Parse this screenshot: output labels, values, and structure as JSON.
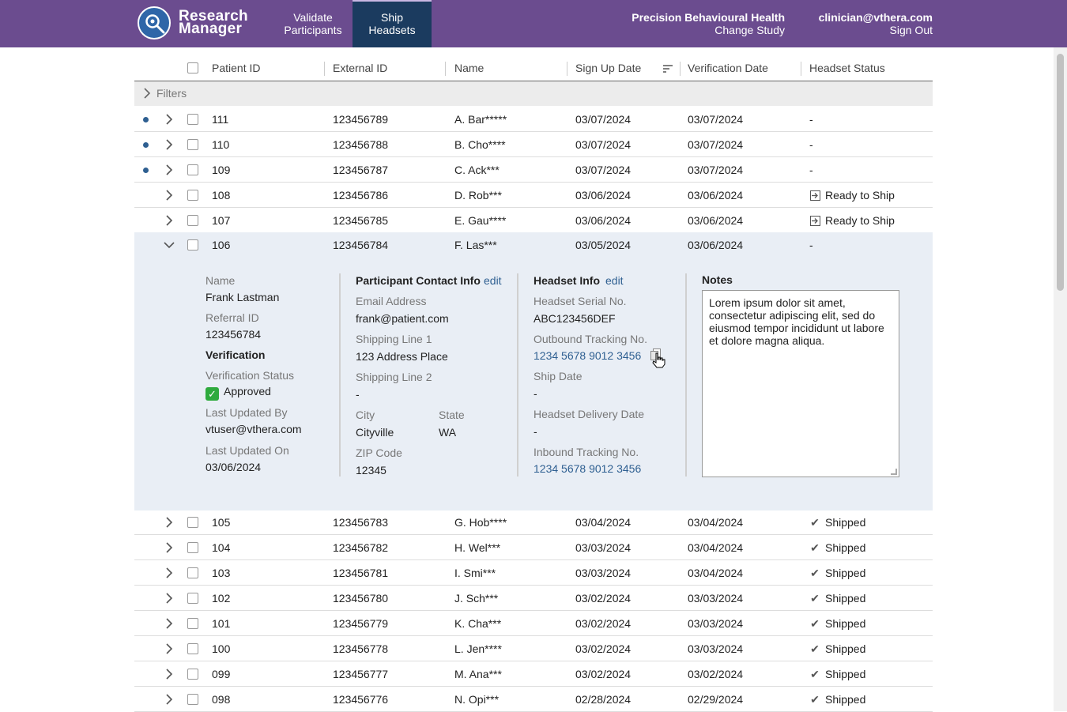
{
  "app": {
    "logo_line1": "Research",
    "logo_line2": "Manager",
    "nav": [
      {
        "line1": "Validate",
        "line2": "Participants"
      },
      {
        "line1": "Ship",
        "line2": "Headsets"
      }
    ],
    "study_name": "Precision Behavioural Health",
    "change_study": "Change Study",
    "user_email": "clinician@vthera.com",
    "sign_out": "Sign Out",
    "colors": {
      "header_bg": "#6b4c8f",
      "active_tab": "#1b3b5f",
      "link": "#2e5f91"
    }
  },
  "table": {
    "columns": [
      "Patient ID",
      "External ID",
      "Name",
      "Sign Up Date",
      "Verification Date",
      "Headset Status"
    ],
    "filters_label": "Filters",
    "rows": [
      {
        "id": "111",
        "ext": "123456789",
        "name": "A. Bar*****",
        "signup": "03/07/2024",
        "verified": "03/07/2024",
        "status": "-",
        "status_icon": "",
        "new": true
      },
      {
        "id": "110",
        "ext": "123456788",
        "name": "B. Cho****",
        "signup": "03/07/2024",
        "verified": "03/07/2024",
        "status": "-",
        "status_icon": "",
        "new": true
      },
      {
        "id": "109",
        "ext": "123456787",
        "name": "C. Ack***",
        "signup": "03/07/2024",
        "verified": "03/07/2024",
        "status": "-",
        "status_icon": "",
        "new": true
      },
      {
        "id": "108",
        "ext": "123456786",
        "name": "D. Rob***",
        "signup": "03/06/2024",
        "verified": "03/06/2024",
        "status": "Ready to Ship",
        "status_icon": "ship-ready-icon",
        "new": false
      },
      {
        "id": "107",
        "ext": "123456785",
        "name": "E. Gau****",
        "signup": "03/06/2024",
        "verified": "03/06/2024",
        "status": "Ready to Ship",
        "status_icon": "ship-ready-icon",
        "new": false
      },
      {
        "id": "106",
        "ext": "123456784",
        "name": "F. Las***",
        "signup": "03/05/2024",
        "verified": "03/06/2024",
        "status": "-",
        "status_icon": "",
        "new": false,
        "expanded": true
      },
      {
        "id": "105",
        "ext": "123456783",
        "name": "G. Hob****",
        "signup": "03/04/2024",
        "verified": "03/04/2024",
        "status": "Shipped",
        "status_icon": "check-icon",
        "new": false
      },
      {
        "id": "104",
        "ext": "123456782",
        "name": "H. Wel***",
        "signup": "03/03/2024",
        "verified": "03/04/2024",
        "status": "Shipped",
        "status_icon": "check-icon",
        "new": false
      },
      {
        "id": "103",
        "ext": "123456781",
        "name": "I. Smi***",
        "signup": "03/03/2024",
        "verified": "03/04/2024",
        "status": "Shipped",
        "status_icon": "check-icon",
        "new": false
      },
      {
        "id": "102",
        "ext": "123456780",
        "name": "J. Sch***",
        "signup": "03/02/2024",
        "verified": "03/03/2024",
        "status": "Shipped",
        "status_icon": "check-icon",
        "new": false
      },
      {
        "id": "101",
        "ext": "123456779",
        "name": "K. Cha***",
        "signup": "03/02/2024",
        "verified": "03/03/2024",
        "status": "Shipped",
        "status_icon": "check-icon",
        "new": false
      },
      {
        "id": "100",
        "ext": "123456778",
        "name": "L. Jen****",
        "signup": "03/02/2024",
        "verified": "03/03/2024",
        "status": "Shipped",
        "status_icon": "check-icon",
        "new": false
      },
      {
        "id": "099",
        "ext": "123456777",
        "name": "M. Ana***",
        "signup": "03/02/2024",
        "verified": "03/02/2024",
        "status": "Shipped",
        "status_icon": "check-icon",
        "new": false
      },
      {
        "id": "098",
        "ext": "123456776",
        "name": "N. Opi***",
        "signup": "02/28/2024",
        "verified": "02/29/2024",
        "status": "Shipped",
        "status_icon": "check-icon",
        "new": false
      }
    ]
  },
  "detail": {
    "name_label": "Name",
    "name_value": "Frank Lastman",
    "referral_label": "Referral ID",
    "referral_value": "123456784",
    "verification_heading": "Verification",
    "verification_status_label": "Verification Status",
    "verification_status_value": "Approved",
    "last_updated_by_label": "Last Updated By",
    "last_updated_by_value": "vtuser@vthera.com",
    "last_updated_on_label": "Last Updated On",
    "last_updated_on_value": "03/06/2024",
    "contact_heading": "Participant Contact Info",
    "edit_label": "edit",
    "email_label": "Email Address",
    "email_value": "frank@patient.com",
    "ship1_label": "Shipping Line 1",
    "ship1_value": "123 Address Place",
    "ship2_label": "Shipping Line 2",
    "ship2_value": "-",
    "city_label": "City",
    "city_value": "Cityville",
    "state_label": "State",
    "state_value": "WA",
    "zip_label": "ZIP Code",
    "zip_value": "12345",
    "headset_heading": "Headset Info",
    "serial_label": "Headset Serial No.",
    "serial_value": "ABC123456DEF",
    "outbound_label": "Outbound Tracking No.",
    "outbound_value": "1234 5678 9012 3456",
    "ship_date_label": "Ship Date",
    "ship_date_value": "-",
    "delivery_label": "Headset Delivery Date",
    "delivery_value": "-",
    "inbound_label": "Inbound Tracking No.",
    "inbound_value": "1234 5678 9012 3456",
    "notes_heading": "Notes",
    "notes_value": "Lorem ipsum dolor sit amet, consectetur adipiscing elit, sed do eiusmod tempor incididunt ut labore et dolore magna aliqua."
  }
}
